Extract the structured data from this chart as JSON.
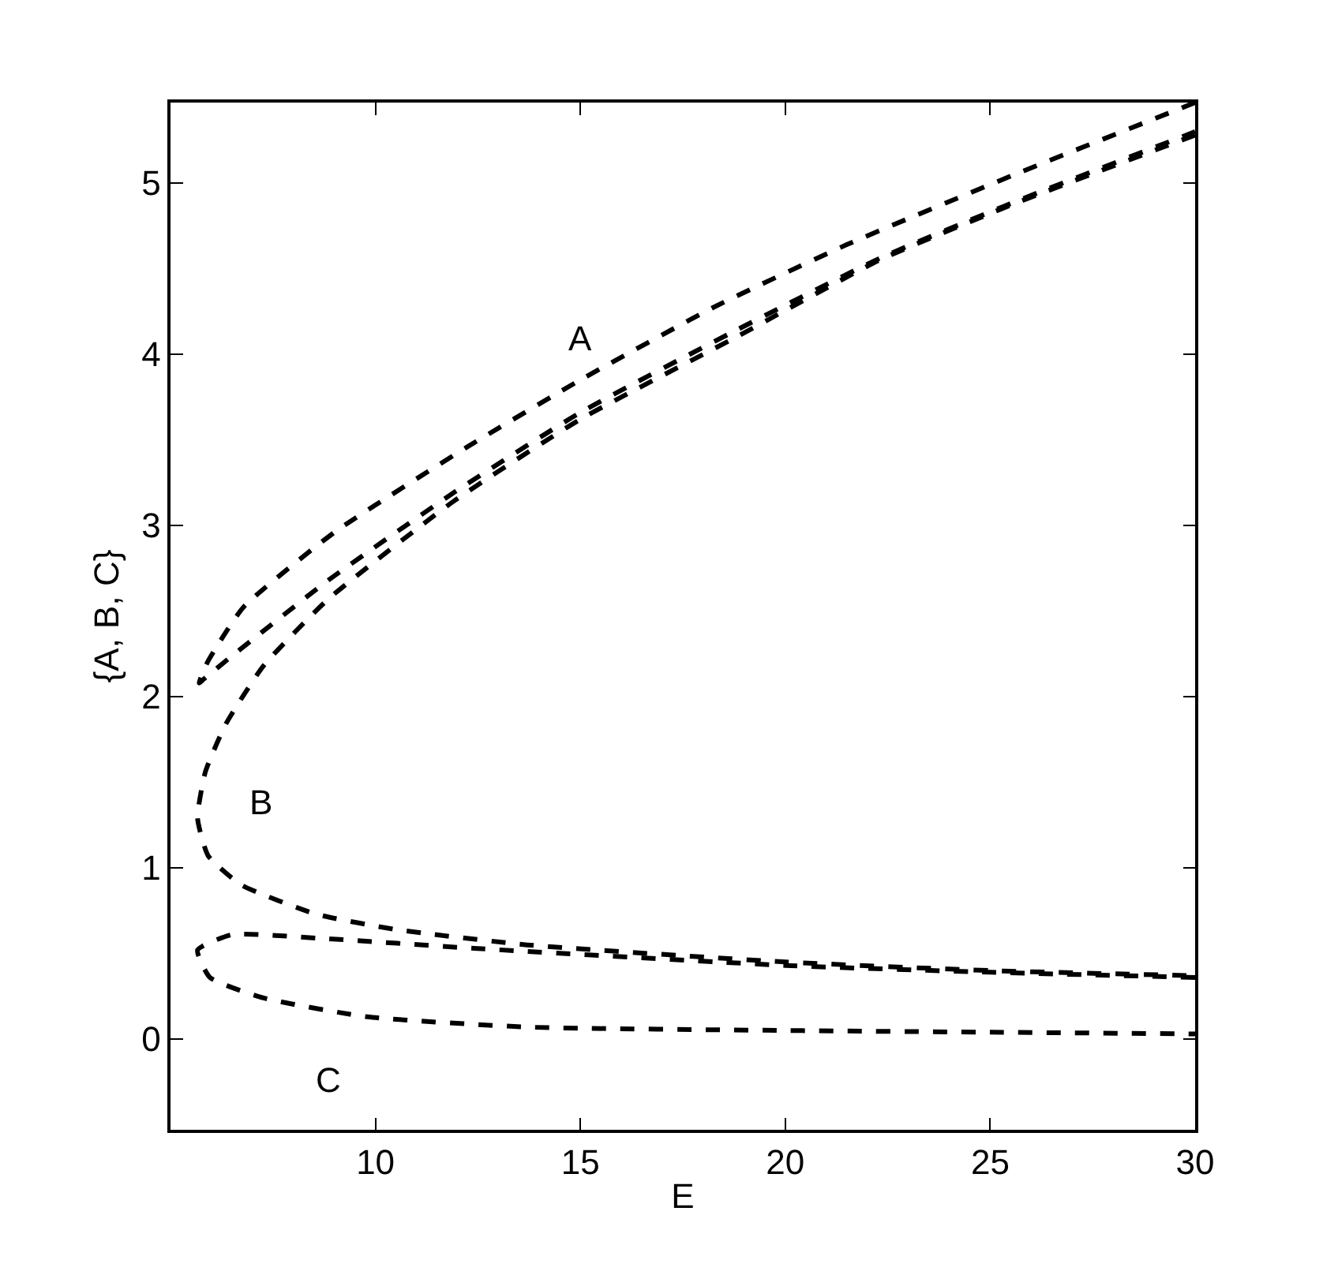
{
  "chart_data": {
    "type": "line",
    "xlabel": "E",
    "ylabel": "{A, B, C}",
    "xlim": [
      5,
      30
    ],
    "ylim": [
      -0.53,
      5.47
    ],
    "xticks": [
      10,
      15,
      20,
      25,
      30
    ],
    "yticks": [
      0,
      1,
      2,
      3,
      4,
      5
    ],
    "legend": false,
    "line_style": "dashed",
    "marker": "none",
    "series": [
      {
        "name": "A",
        "color": "#000000",
        "x": [
          30,
          25.6,
          21.5,
          18.3,
          15.0,
          12.25,
          9.0,
          6.77,
          5.9,
          5.7,
          5.8,
          6.46,
          8.85,
          11.9,
          15.0,
          18.8,
          22.3,
          25.6,
          30
        ],
        "values": [
          5.47,
          5.05,
          4.64,
          4.28,
          3.85,
          3.46,
          2.96,
          2.52,
          2.2,
          2.08,
          2.1,
          2.23,
          2.68,
          3.19,
          3.66,
          4.14,
          4.56,
          4.89,
          5.3
        ]
      },
      {
        "name": "B",
        "color": "#000000",
        "x": [
          30,
          25.6,
          22.3,
          18.8,
          15.0,
          11.9,
          8.85,
          7.27,
          6.35,
          5.85,
          5.66,
          5.92,
          6.73,
          8.55,
          10.5,
          13.7,
          20,
          25,
          30
        ],
        "values": [
          5.28,
          4.88,
          4.55,
          4.1,
          3.62,
          3.14,
          2.57,
          2.18,
          1.84,
          1.56,
          1.29,
          1.07,
          0.9,
          0.73,
          0.64,
          0.55,
          0.45,
          0.4,
          0.37
        ]
      },
      {
        "name": "C",
        "color": "#000000",
        "x": [
          30,
          25,
          20,
          12.4,
          8.55,
          6.5,
          5.66,
          5.96,
          7.27,
          9.8,
          13.7,
          20,
          25,
          30
        ],
        "values": [
          0.36,
          0.39,
          0.43,
          0.53,
          0.59,
          0.61,
          0.52,
          0.36,
          0.24,
          0.13,
          0.07,
          0.05,
          0.04,
          0.03
        ]
      }
    ]
  }
}
